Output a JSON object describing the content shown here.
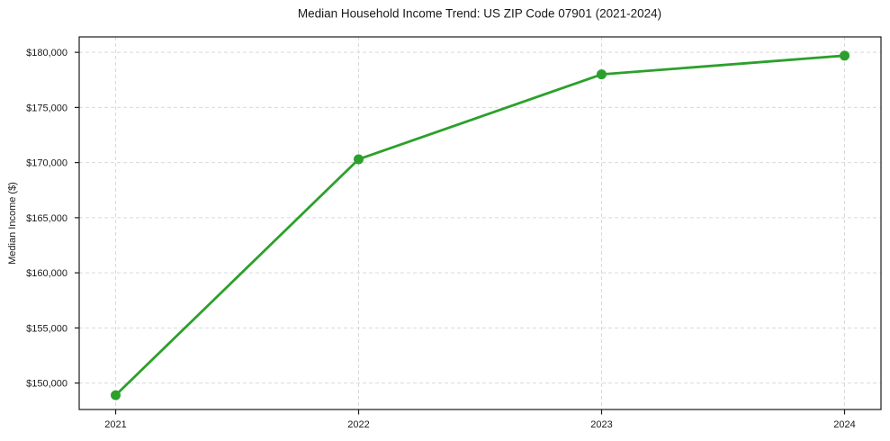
{
  "chart_data": {
    "type": "line",
    "title": "Median Household Income Trend: US ZIP Code 07901 (2021-2024)",
    "xlabel": "",
    "ylabel": "Median Income ($)",
    "x": [
      2021,
      2022,
      2023,
      2024
    ],
    "values": [
      148900,
      170300,
      178000,
      179700
    ],
    "x_tick_labels": [
      "2021",
      "2022",
      "2023",
      "2024"
    ],
    "y_ticks": [
      150000,
      155000,
      160000,
      165000,
      170000,
      175000,
      180000
    ],
    "y_tick_labels": [
      "$150,000",
      "$155,000",
      "$160,000",
      "$165,000",
      "$170,000",
      "$175,000",
      "$180,000"
    ],
    "xlim": [
      2020.85,
      2024.15
    ],
    "ylim": [
      147600,
      181400
    ],
    "grid": true,
    "grid_style": "dashed",
    "legend": false,
    "style": {
      "line_color": "#2ca02c",
      "marker": "circle",
      "marker_radius": 5.5,
      "line_width": 2.8,
      "grid_color": "#d9d9d9",
      "spine_color": "#1a1a1a",
      "text_color": "#1a1a1a",
      "background": "#ffffff"
    }
  }
}
